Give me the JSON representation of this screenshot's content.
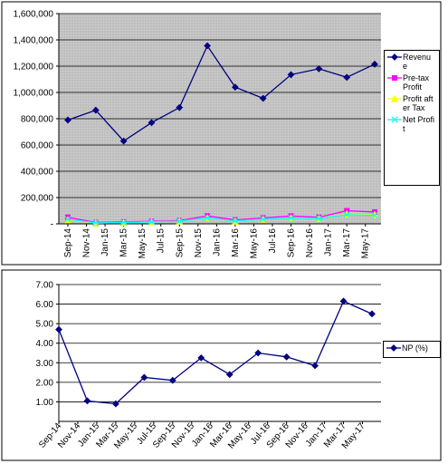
{
  "chart_data": [
    {
      "type": "line",
      "x": [
        "2014-09",
        "2014-12",
        "2015-03",
        "2015-06",
        "2015-09",
        "2015-12",
        "2016-03",
        "2016-06",
        "2016-09",
        "2016-12",
        "2017-03",
        "2017-06"
      ],
      "xlim": [
        "2014-09",
        "2017-06"
      ],
      "xticks": [
        {
          "value": "2014-09",
          "label": "Sep-14"
        },
        {
          "value": "2014-11",
          "label": "Nov-14"
        },
        {
          "value": "2015-01",
          "label": "Jan-15"
        },
        {
          "value": "2015-03",
          "label": "Mar-15"
        },
        {
          "value": "2015-05",
          "label": "May-15"
        },
        {
          "value": "2015-07",
          "label": "Jul-15"
        },
        {
          "value": "2015-09",
          "label": "Sep-15"
        },
        {
          "value": "2015-11",
          "label": "Nov-15"
        },
        {
          "value": "2016-01",
          "label": "Jan-16"
        },
        {
          "value": "2016-03",
          "label": "Mar-16"
        },
        {
          "value": "2016-05",
          "label": "May-16"
        },
        {
          "value": "2016-07",
          "label": "Jul-16"
        },
        {
          "value": "2016-09",
          "label": "Sep-16"
        },
        {
          "value": "2016-11",
          "label": "Nov-16"
        },
        {
          "value": "2017-01",
          "label": "Jan-17"
        },
        {
          "value": "2017-03",
          "label": "Mar-17"
        },
        {
          "value": "2017-05",
          "label": "May-17"
        }
      ],
      "ylim": [
        0,
        1600000
      ],
      "yticks": [
        {
          "value": 0,
          "label": "-"
        },
        {
          "value": 200000,
          "label": "200,000"
        },
        {
          "value": 400000,
          "label": "400,000"
        },
        {
          "value": 600000,
          "label": "600,000"
        },
        {
          "value": 800000,
          "label": "800,000"
        },
        {
          "value": 1000000,
          "label": "1,000,000"
        },
        {
          "value": 1200000,
          "label": "1,200,000"
        },
        {
          "value": 1400000,
          "label": "1,400,000"
        },
        {
          "value": 1600000,
          "label": "1,600,000"
        }
      ],
      "grid": true,
      "legend": "right",
      "series": [
        {
          "name": "Revenue",
          "color": "#000080",
          "marker": "diamond",
          "values": [
            790000,
            865000,
            630000,
            770000,
            885000,
            1355000,
            1040000,
            955000,
            1135000,
            1180000,
            1115000,
            1215000
          ]
        },
        {
          "name": "Pre-tax Profit",
          "color": "#ff00ff",
          "marker": "square",
          "values": [
            50000,
            10000,
            15000,
            20000,
            25000,
            60000,
            30000,
            45000,
            60000,
            50000,
            100000,
            90000
          ]
        },
        {
          "name": "Profit after Tax",
          "color": "#ffff00",
          "marker": "triangle",
          "values": [
            30000,
            5000,
            10000,
            15000,
            20000,
            45000,
            20000,
            35000,
            45000,
            40000,
            75000,
            70000
          ]
        },
        {
          "name": "Net Profit",
          "color": "#00ffff",
          "marker": "cross",
          "values": [
            35000,
            8000,
            10000,
            15000,
            20000,
            45000,
            22000,
            35000,
            45000,
            40000,
            70000,
            65000
          ]
        }
      ]
    },
    {
      "type": "line",
      "x": [
        "2014-09",
        "2014-12",
        "2015-03",
        "2015-06",
        "2015-09",
        "2015-12",
        "2016-03",
        "2016-06",
        "2016-09",
        "2016-12",
        "2017-03",
        "2017-06"
      ],
      "xlim": [
        "2014-09",
        "2017-06"
      ],
      "xticks": [
        {
          "value": "2014-09",
          "label": "Sep-14"
        },
        {
          "value": "2014-11",
          "label": "Nov-14"
        },
        {
          "value": "2015-01",
          "label": "Jan-15"
        },
        {
          "value": "2015-03",
          "label": "Mar-15"
        },
        {
          "value": "2015-05",
          "label": "May-15"
        },
        {
          "value": "2015-07",
          "label": "Jul-15"
        },
        {
          "value": "2015-09",
          "label": "Sep-15"
        },
        {
          "value": "2015-11",
          "label": "Nov-15"
        },
        {
          "value": "2016-01",
          "label": "Jan-16"
        },
        {
          "value": "2016-03",
          "label": "Mar-16"
        },
        {
          "value": "2016-05",
          "label": "May-16"
        },
        {
          "value": "2016-07",
          "label": "Jul-16"
        },
        {
          "value": "2016-09",
          "label": "Sep-16"
        },
        {
          "value": "2016-11",
          "label": "Nov-16"
        },
        {
          "value": "2017-01",
          "label": "Jan-17"
        },
        {
          "value": "2017-03",
          "label": "Mar-17"
        },
        {
          "value": "2017-05",
          "label": "May-17"
        }
      ],
      "ylim": [
        0,
        7
      ],
      "yticks": [
        {
          "value": 1,
          "label": "1.00"
        },
        {
          "value": 2,
          "label": "2.00"
        },
        {
          "value": 3,
          "label": "3.00"
        },
        {
          "value": 4,
          "label": "4.00"
        },
        {
          "value": 5,
          "label": "5.00"
        },
        {
          "value": 6,
          "label": "6.00"
        },
        {
          "value": 7,
          "label": "7.00"
        }
      ],
      "grid": true,
      "legend": "right",
      "series": [
        {
          "name": "NP (%)",
          "color": "#000080",
          "marker": "diamond",
          "values": [
            4.7,
            1.05,
            0.9,
            2.25,
            2.1,
            3.25,
            2.4,
            3.5,
            3.3,
            2.85,
            6.15,
            5.5
          ]
        }
      ]
    }
  ]
}
